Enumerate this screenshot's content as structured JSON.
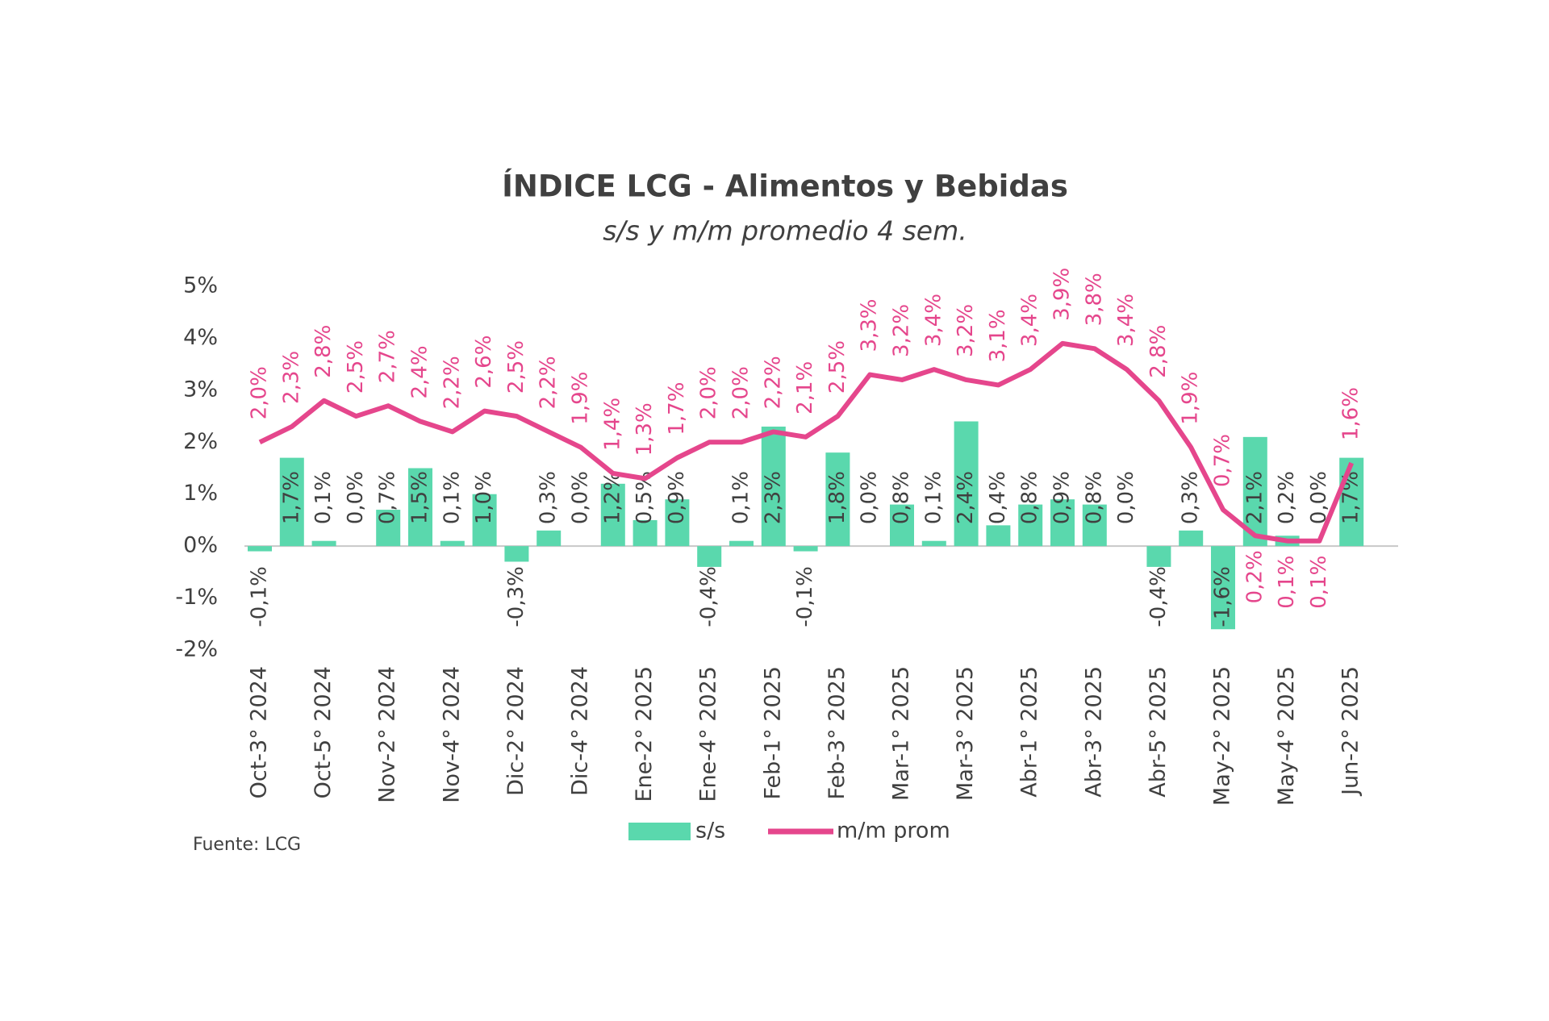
{
  "chart_data": {
    "type": "bar",
    "title": "ÍNDICE LCG - Alimentos y Bebidas",
    "subtitle": "s/s y m/m promedio 4 sem.",
    "source": "Fuente: LCG",
    "categories": [
      "Oct-3° 2024",
      null,
      "Oct-5° 2024",
      null,
      "Nov-2° 2024",
      null,
      "Nov-4° 2024",
      null,
      "Dic-2° 2024",
      null,
      "Dic-4° 2024",
      null,
      "Ene-2° 2025",
      null,
      "Ene-4° 2025",
      null,
      "Feb-1° 2025",
      null,
      "Feb-3° 2025",
      null,
      "Mar-1° 2025",
      null,
      "Mar-3° 2025",
      null,
      "Abr-1° 2025",
      null,
      "Abr-3° 2025",
      null,
      "Abr-5° 2025",
      null,
      "May-2° 2025",
      null,
      "May-4° 2025",
      null,
      "Jun-2° 2025"
    ],
    "series": [
      {
        "name": "s/s",
        "type": "bar",
        "color": "#5ad8ad",
        "values": [
          -0.1,
          1.7,
          0.1,
          0.0,
          0.7,
          1.5,
          0.1,
          1.0,
          -0.3,
          0.3,
          0.0,
          1.2,
          0.5,
          0.9,
          -0.4,
          0.1,
          2.3,
          -0.1,
          1.8,
          0.0,
          0.8,
          0.1,
          2.4,
          0.4,
          0.8,
          0.9,
          0.8,
          0.0,
          -0.4,
          0.3,
          -1.6,
          2.1,
          0.2,
          0.0,
          1.7
        ],
        "value_labels": [
          "-0,1%",
          "1,7%",
          "0,1%",
          "0,0%",
          "0,7%",
          "1,5%",
          "0,1%",
          "1,0%",
          "-0,3%",
          "0,3%",
          "0,0%",
          "1,2%",
          "0,5%",
          "0,9%",
          "-0,4%",
          "0,1%",
          "2,3%",
          "-0,1%",
          "1,8%",
          "0,0%",
          "0,8%",
          "0,1%",
          "2,4%",
          "0,4%",
          "0,8%",
          "0,9%",
          "0,8%",
          "0,0%",
          "-0,4%",
          "0,3%",
          "-1,6%",
          "2,1%",
          "0,2%",
          "0,0%",
          "1,7%"
        ]
      },
      {
        "name": "m/m prom",
        "type": "line",
        "color": "#e5468c",
        "values": [
          2.0,
          2.3,
          2.8,
          2.5,
          2.7,
          2.4,
          2.2,
          2.6,
          2.5,
          2.2,
          1.9,
          1.4,
          1.3,
          1.7,
          2.0,
          2.0,
          2.2,
          2.1,
          2.5,
          3.3,
          3.2,
          3.4,
          3.2,
          3.1,
          3.4,
          3.9,
          3.8,
          3.4,
          2.8,
          1.9,
          0.7,
          0.2,
          0.1,
          0.1,
          1.6
        ],
        "value_labels": [
          "2,0%",
          "2,3%",
          "2,8%",
          "2,5%",
          "2,7%",
          "2,4%",
          "2,2%",
          "2,6%",
          "2,5%",
          "2,2%",
          "1,9%",
          "1,4%",
          "1,3%",
          "1,7%",
          "2,0%",
          "2,0%",
          "2,2%",
          "2,1%",
          "2,5%",
          "3,3%",
          "3,2%",
          "3,4%",
          "3,2%",
          "3,1%",
          "3,4%",
          "3,9%",
          "3,8%",
          "3,4%",
          "2,8%",
          "1,9%",
          "0,7%",
          "0,2%",
          "0,1%",
          "0,1%",
          "1,6%"
        ]
      }
    ],
    "ylim": [
      -2,
      5
    ],
    "yticks": [
      {
        "value": -2,
        "label": "-2%"
      },
      {
        "value": -1,
        "label": "-1%"
      },
      {
        "value": 0,
        "label": "0%"
      },
      {
        "value": 1,
        "label": "1%"
      },
      {
        "value": 2,
        "label": "2%"
      },
      {
        "value": 3,
        "label": "3%"
      },
      {
        "value": 4,
        "label": "4%"
      },
      {
        "value": 5,
        "label": "5%"
      }
    ],
    "grid": false
  }
}
